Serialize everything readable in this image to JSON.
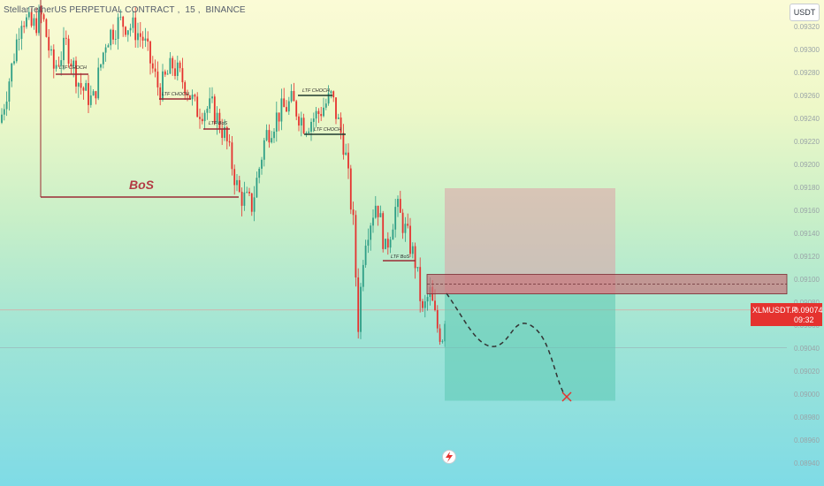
{
  "header": {
    "symbol": "StellarTetherUS PERPETUAL CONTRACT",
    "interval": "15",
    "exchange": "BINANCE"
  },
  "toolbar": {
    "currency_label": "USDT"
  },
  "price_axis": {
    "labels": [
      "0.09320",
      "0.09300",
      "0.09280",
      "0.09260",
      "0.09240",
      "0.09220",
      "0.09200",
      "0.09180",
      "0.09160",
      "0.09140",
      "0.09120",
      "0.09100",
      "0.09080",
      "0.09060",
      "0.09040",
      "0.09020",
      "0.09000",
      "0.08980",
      "0.08960",
      "0.08940"
    ]
  },
  "time_axis": {
    "labels": [
      "",
      "",
      "",
      "",
      "",
      "",
      "",
      "",
      "",
      "",
      "",
      "",
      "",
      ""
    ]
  },
  "last_price": {
    "symbol": "XLMUSDT.P",
    "value": "0.09074",
    "countdown": "09:32"
  },
  "annotations": {
    "bos_main": "BoS",
    "ltf_choch_1": "LTF CHOCH",
    "ltf_choch_2": "LTF CHOCH",
    "ltf_bos_1": "LTF BoS",
    "ltf_choch_3": "LTF CHOCH",
    "ltf_choch_4": "LTF CHOCH",
    "ltf_bos_2": "LTF BoS"
  },
  "colors": {
    "up": "#2e9e86",
    "down": "#e5322f",
    "marker": "#9b2b35",
    "target_zone": "#5cc8b2",
    "stop_zone": "#dca0a8",
    "entry_zone": "#c8737b",
    "path": "#333333",
    "target_x": "#e5322f"
  },
  "chart_data": {
    "type": "candlestick",
    "symbol": "XLMUSDT.P",
    "interval": "15",
    "ylim": [
      0.0893,
      0.0934
    ],
    "position": {
      "side": "short",
      "entry_zone": [
        0.09088,
        0.09105
      ],
      "stop": 0.0918,
      "target": 0.08995
    },
    "horizontal_levels": [
      0.09074,
      0.09041
    ]
  }
}
